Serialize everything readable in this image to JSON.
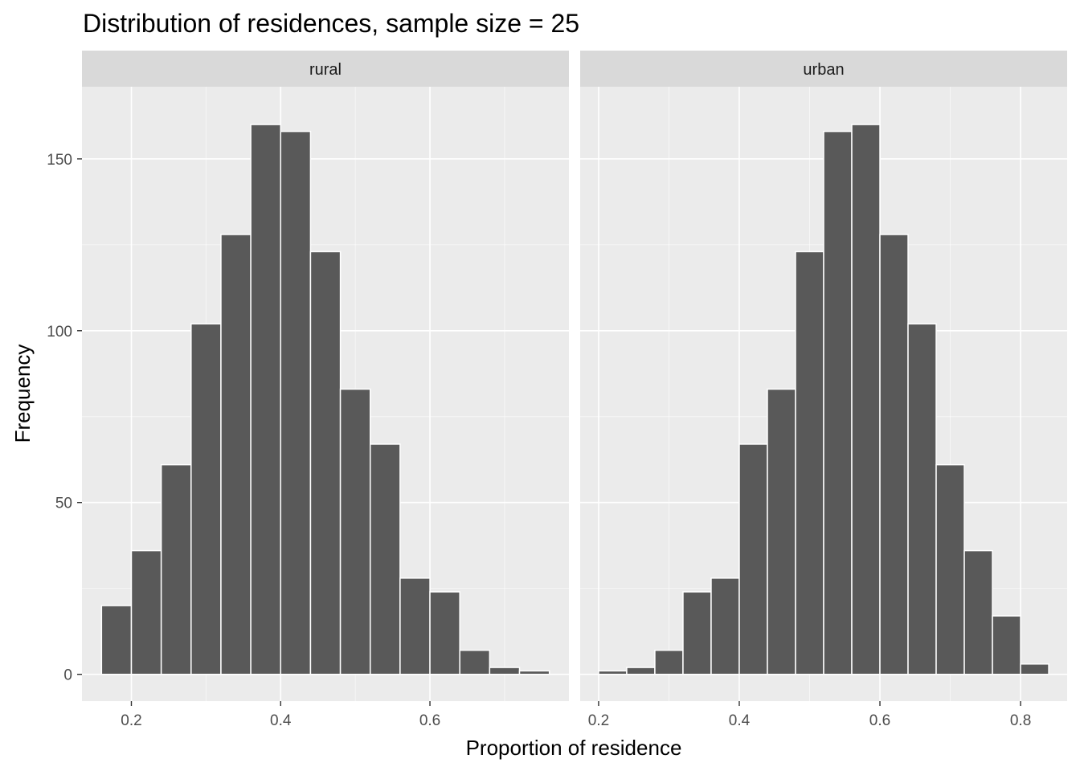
{
  "chart_data": {
    "type": "bar",
    "title": "Distribution of residences, sample size = 25",
    "xlabel": "Proportion of residence",
    "ylabel": "Frequency",
    "ylim": [
      -7.8,
      171
    ],
    "y_ticks": [
      0,
      50,
      100,
      150
    ],
    "y_tick_labels": [
      "0",
      "50",
      "100",
      "150"
    ],
    "bin_width": 0.04,
    "grid": true,
    "colors": {
      "panel_background": "#ebebeb",
      "grid_major": "#ffffff",
      "strip_background": "#d9d9d9",
      "bar_fill": "#595959",
      "bar_outline": "#ffffff"
    },
    "facets": [
      {
        "label": "rural",
        "xlim": [
          0.1338,
          0.7862
        ],
        "x_ticks": [
          0.2,
          0.4,
          0.6
        ],
        "x_tick_labels": [
          "0.2",
          "0.4",
          "0.6"
        ],
        "bin_centers": [
          0.18,
          0.22,
          0.26,
          0.3,
          0.34,
          0.38,
          0.42,
          0.46,
          0.5,
          0.54,
          0.58,
          0.62,
          0.66,
          0.7,
          0.74
        ],
        "values": [
          20,
          36,
          61,
          102,
          128,
          160,
          158,
          123,
          83,
          67,
          28,
          24,
          7,
          2,
          1
        ]
      },
      {
        "label": "urban",
        "xlim": [
          0.1738,
          0.8662
        ],
        "x_ticks": [
          0.2,
          0.4,
          0.6,
          0.8
        ],
        "x_tick_labels": [
          "0.2",
          "0.4",
          "0.6",
          "0.8"
        ],
        "bin_centers": [
          0.22,
          0.26,
          0.3,
          0.34,
          0.38,
          0.42,
          0.46,
          0.5,
          0.54,
          0.58,
          0.62,
          0.66,
          0.7,
          0.74,
          0.78,
          0.82
        ],
        "values": [
          1,
          2,
          7,
          24,
          28,
          67,
          83,
          123,
          158,
          160,
          128,
          102,
          61,
          36,
          17,
          3
        ]
      }
    ]
  }
}
